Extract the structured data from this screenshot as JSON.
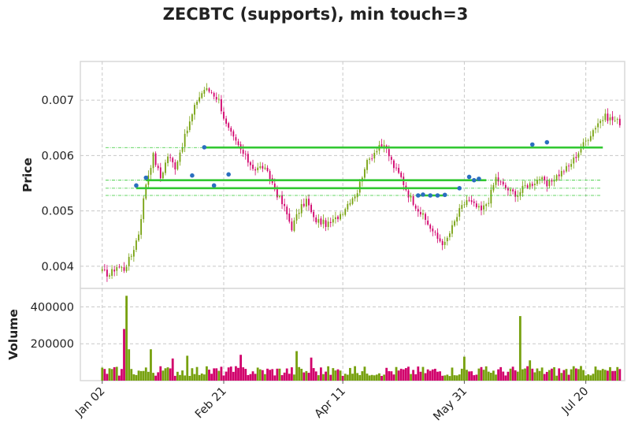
{
  "title": "ZECBTC (supports), min touch=3",
  "chart_data": [
    {
      "type": "candlestick",
      "panel": "price",
      "ylabel": "Price",
      "ylim": [
        0.0036,
        0.0077
      ],
      "yticks": [
        0.004,
        0.005,
        0.006,
        0.007
      ],
      "ytick_labels": [
        "0.004",
        "0.005",
        "0.006",
        "0.007"
      ],
      "xticks": [
        {
          "index": 0,
          "label": "Jan 02"
        },
        {
          "index": 50,
          "label": "Feb 21"
        },
        {
          "index": 99,
          "label": "Apr 11"
        },
        {
          "index": 149,
          "label": "May 31"
        },
        {
          "index": 199,
          "label": "Jul 20"
        }
      ],
      "xlim": [
        -9,
        215
      ],
      "grid": true,
      "colors": {
        "up": "#77a10f",
        "down": "#d1006b",
        "support": "#32c832",
        "touch": "#2a6fbf"
      },
      "anchors": [
        [
          0,
          0.0039
        ],
        [
          3,
          0.00385
        ],
        [
          6,
          0.004
        ],
        [
          9,
          0.00395
        ],
        [
          12,
          0.0042
        ],
        [
          15,
          0.0046
        ],
        [
          18,
          0.0055
        ],
        [
          21,
          0.006
        ],
        [
          24,
          0.0056
        ],
        [
          27,
          0.006
        ],
        [
          30,
          0.0058
        ],
        [
          33,
          0.0062
        ],
        [
          36,
          0.0066
        ],
        [
          39,
          0.007
        ],
        [
          42,
          0.0072
        ],
        [
          45,
          0.00715
        ],
        [
          48,
          0.007
        ],
        [
          51,
          0.00655
        ],
        [
          54,
          0.0063
        ],
        [
          57,
          0.0061
        ],
        [
          60,
          0.0059
        ],
        [
          63,
          0.00575
        ],
        [
          66,
          0.0058
        ],
        [
          69,
          0.0056
        ],
        [
          72,
          0.0053
        ],
        [
          75,
          0.00505
        ],
        [
          78,
          0.0047
        ],
        [
          81,
          0.005
        ],
        [
          84,
          0.0052
        ],
        [
          87,
          0.00485
        ],
        [
          90,
          0.0048
        ],
        [
          93,
          0.00475
        ],
        [
          96,
          0.00485
        ],
        [
          99,
          0.005
        ],
        [
          102,
          0.0052
        ],
        [
          105,
          0.00535
        ],
        [
          108,
          0.0058
        ],
        [
          111,
          0.006
        ],
        [
          114,
          0.0062
        ],
        [
          117,
          0.0061
        ],
        [
          120,
          0.0058
        ],
        [
          123,
          0.0056
        ],
        [
          126,
          0.0053
        ],
        [
          129,
          0.0051
        ],
        [
          132,
          0.0049
        ],
        [
          135,
          0.0047
        ],
        [
          138,
          0.0045
        ],
        [
          141,
          0.0044
        ],
        [
          144,
          0.0047
        ],
        [
          147,
          0.005
        ],
        [
          150,
          0.0052
        ],
        [
          153,
          0.0051
        ],
        [
          156,
          0.005
        ],
        [
          159,
          0.0052
        ],
        [
          162,
          0.0056
        ],
        [
          165,
          0.00545
        ],
        [
          168,
          0.00535
        ],
        [
          171,
          0.0053
        ],
        [
          174,
          0.00545
        ],
        [
          177,
          0.0055
        ],
        [
          180,
          0.0056
        ],
        [
          183,
          0.00545
        ],
        [
          186,
          0.0056
        ],
        [
          189,
          0.0057
        ],
        [
          192,
          0.0058
        ],
        [
          195,
          0.006
        ],
        [
          198,
          0.0062
        ],
        [
          201,
          0.0064
        ],
        [
          204,
          0.0066
        ],
        [
          207,
          0.0067
        ],
        [
          210,
          0.00665
        ],
        [
          213,
          0.0066
        ]
      ],
      "supports": [
        {
          "start": 42,
          "end": 206,
          "level": 0.006145
        },
        {
          "start": 18,
          "end": 158,
          "level": 0.005555
        },
        {
          "start": 14,
          "end": 147,
          "level": 0.00541
        },
        {
          "start": 130,
          "end": 141,
          "level": 0.00528
        }
      ],
      "touches": [
        [
          14,
          0.00546
        ],
        [
          18,
          0.0056
        ],
        [
          37,
          0.00564
        ],
        [
          42,
          0.00615
        ],
        [
          46,
          0.00546
        ],
        [
          52,
          0.00566
        ],
        [
          130,
          0.00528
        ],
        [
          132,
          0.005295
        ],
        [
          135,
          0.00528
        ],
        [
          138,
          0.00528
        ],
        [
          141,
          0.00529
        ],
        [
          147,
          0.00541
        ],
        [
          151,
          0.005615
        ],
        [
          153,
          0.005555
        ],
        [
          155,
          0.00558
        ],
        [
          177,
          0.0062
        ],
        [
          183,
          0.00624
        ]
      ]
    },
    {
      "type": "bar",
      "panel": "volume",
      "ylabel": "Volume",
      "ylim": [
        0,
        500000
      ],
      "yticks": [
        200000,
        400000
      ],
      "ytick_labels": [
        "200000",
        "400000"
      ],
      "peaks": [
        {
          "index": 9,
          "value": 280000
        },
        {
          "index": 10,
          "value": 460000
        },
        {
          "index": 11,
          "value": 170000
        },
        {
          "index": 20,
          "value": 170000
        },
        {
          "index": 29,
          "value": 120000
        },
        {
          "index": 35,
          "value": 135000
        },
        {
          "index": 57,
          "value": 140000
        },
        {
          "index": 80,
          "value": 160000
        },
        {
          "index": 86,
          "value": 125000
        },
        {
          "index": 149,
          "value": 130000
        },
        {
          "index": 172,
          "value": 350000
        },
        {
          "index": 176,
          "value": 110000
        }
      ]
    }
  ]
}
